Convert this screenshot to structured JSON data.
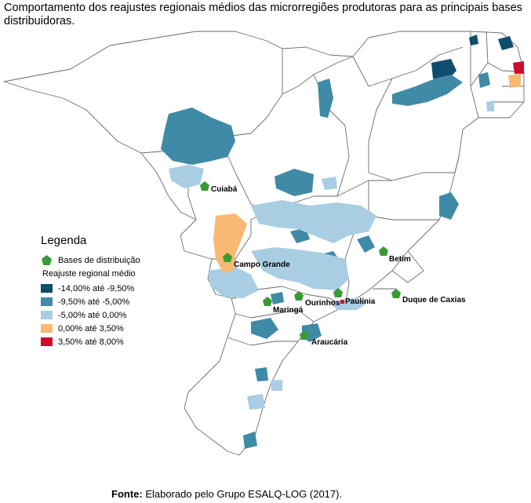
{
  "title": "Comportamento dos reajustes regionais médios das microrregiões produtoras para as principais bases distribuidoras.",
  "legend": {
    "heading": "Legenda",
    "bases_label": "Bases de distribuição",
    "subheading": "Reajuste regional médio",
    "classes": [
      {
        "label": "-14,00% até -9,50%",
        "color": "#0f4c6e"
      },
      {
        "label": "-9,50% até -5,00%",
        "color": "#3f8aa6"
      },
      {
        "label": "-5,00% até 0,00%",
        "color": "#a9cde3"
      },
      {
        "label": "0,00% até 3,50%",
        "color": "#f8b974"
      },
      {
        "label": "3,50% até 8,00%",
        "color": "#cf0a2c"
      }
    ],
    "marker_color": "#3a9a35"
  },
  "cities": [
    {
      "name": "Cuiabá"
    },
    {
      "name": "Campo Grande"
    },
    {
      "name": "Betim"
    },
    {
      "name": "Ourinhos"
    },
    {
      "name": "Paulínia"
    },
    {
      "name": "Duque de Caxias"
    },
    {
      "name": "Maringá"
    },
    {
      "name": "Araucária"
    }
  ],
  "source": {
    "prefix": "Fonte:",
    "text": " Elaborado pelo Grupo ESALQ-LOG (2017)."
  }
}
